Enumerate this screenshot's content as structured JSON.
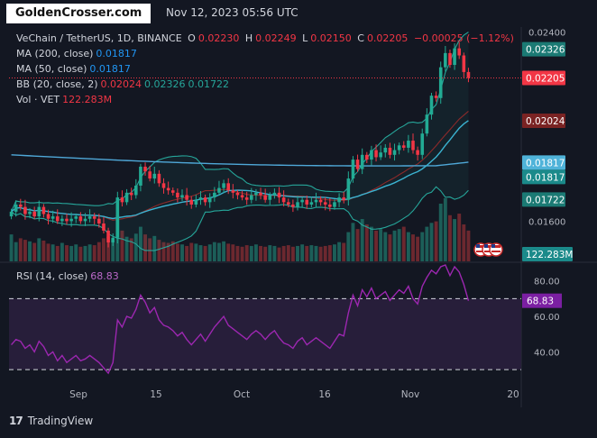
{
  "header": {
    "brand": "GoldenCrosser.com",
    "timestamp": "Nov 12, 2023 05:56 UTC"
  },
  "legend": {
    "symbol": "VeChain / TetherUS, 1D, BINANCE",
    "o_label": "O",
    "o_value": "0.02230",
    "h_label": "H",
    "h_value": "0.02249",
    "l_label": "L",
    "l_value": "0.02150",
    "c_label": "C",
    "c_value": "0.02205",
    "change": "−0.00025 (−1.12%)",
    "ma200_label": "MA (200, close)",
    "ma200_value": "0.01817",
    "ma50_label": "MA (50, close)",
    "ma50_value": "0.01817",
    "bb_label": "BB (20, close, 2)",
    "bb_basis": "0.02024",
    "bb_upper": "0.02326",
    "bb_lower": "0.01722",
    "vol_label": "Vol · VET",
    "vol_value": "122.283M",
    "rsi_label": "RSI (14, close)",
    "rsi_value": "68.83"
  },
  "footer": {
    "logo_text": "TradingView",
    "logo_mark": "17"
  },
  "colors": {
    "background": "#131722",
    "up": "#22ab94",
    "down": "#f23645",
    "bb_band": "#26a69a",
    "bb_basis": "#8c2a2a",
    "ma50": "#3bb3d1",
    "ma200": "#4fa8d8",
    "rsi": "#9c27b0",
    "rsi_fill": "#2a1f3d"
  },
  "chart_data": [
    {
      "type": "candlestick",
      "title": "VeChain / TetherUS, 1D, BINANCE",
      "x_ticks": [
        "Sep",
        "15",
        "Oct",
        "16",
        "Nov",
        "20"
      ],
      "y_ticks": [
        "0.02400",
        "0.01600"
      ],
      "y_range": [
        0.0143,
        0.0242
      ],
      "price_badges": [
        {
          "label": "ma200",
          "value": 0.01817,
          "text": "0.01817",
          "color": "#4fb3d9"
        },
        {
          "label": "ma50",
          "value": 0.01817,
          "text": "0.01817",
          "color": "#1b8a8a"
        },
        {
          "label": "bb_upper",
          "value": 0.02326,
          "text": "0.02326",
          "color": "#1b7a74"
        },
        {
          "label": "bb_lower",
          "value": 0.01722,
          "text": "0.01722",
          "color": "#1b7a74"
        },
        {
          "label": "bb_basis",
          "value": 0.02024,
          "text": "0.02024",
          "color": "#7a2323"
        },
        {
          "label": "last",
          "value": 0.02205,
          "text": "0.02205",
          "color": "#f23645"
        },
        {
          "label": "volume",
          "value": 122.283,
          "text": "122.283M",
          "color": "#1b8a8a"
        }
      ],
      "first_date": "2023-08-22",
      "close": [
        0.0164,
        0.0167,
        0.0166,
        0.0163,
        0.0164,
        0.0162,
        0.0166,
        0.0163,
        0.0161,
        0.0162,
        0.016,
        0.0161,
        0.016,
        0.0161,
        0.0162,
        0.016,
        0.0161,
        0.0162,
        0.0161,
        0.0159,
        0.0156,
        0.0151,
        0.0153,
        0.017,
        0.0168,
        0.0172,
        0.0171,
        0.0175,
        0.0183,
        0.0181,
        0.0178,
        0.018,
        0.0176,
        0.0174,
        0.0173,
        0.0172,
        0.017,
        0.0171,
        0.0169,
        0.0167,
        0.0169,
        0.017,
        0.0168,
        0.017,
        0.0172,
        0.0174,
        0.0176,
        0.0173,
        0.0172,
        0.0171,
        0.017,
        0.0169,
        0.0171,
        0.0172,
        0.0171,
        0.0169,
        0.0171,
        0.0172,
        0.017,
        0.0168,
        0.0167,
        0.0166,
        0.0168,
        0.0169,
        0.0167,
        0.0168,
        0.0169,
        0.0168,
        0.0167,
        0.0166,
        0.0168,
        0.017,
        0.0169,
        0.0178,
        0.0186,
        0.0182,
        0.0188,
        0.0186,
        0.019,
        0.0187,
        0.0189,
        0.0191,
        0.0188,
        0.019,
        0.0192,
        0.0191,
        0.0194,
        0.019,
        0.0188,
        0.0197,
        0.0205,
        0.0213,
        0.0212,
        0.0225,
        0.0231,
        0.0226,
        0.0233,
        0.023,
        0.0223,
        0.02205
      ],
      "volume": [
        0.35,
        0.25,
        0.3,
        0.28,
        0.26,
        0.24,
        0.3,
        0.27,
        0.23,
        0.22,
        0.2,
        0.24,
        0.21,
        0.2,
        0.22,
        0.19,
        0.2,
        0.22,
        0.21,
        0.25,
        0.3,
        0.32,
        0.28,
        0.6,
        0.4,
        0.32,
        0.3,
        0.36,
        0.45,
        0.35,
        0.3,
        0.33,
        0.28,
        0.25,
        0.24,
        0.26,
        0.23,
        0.22,
        0.2,
        0.24,
        0.23,
        0.21,
        0.2,
        0.22,
        0.25,
        0.24,
        0.26,
        0.23,
        0.22,
        0.2,
        0.19,
        0.21,
        0.2,
        0.22,
        0.2,
        0.19,
        0.21,
        0.2,
        0.18,
        0.2,
        0.21,
        0.19,
        0.2,
        0.22,
        0.2,
        0.21,
        0.2,
        0.19,
        0.2,
        0.21,
        0.22,
        0.25,
        0.24,
        0.38,
        0.5,
        0.42,
        0.55,
        0.48,
        0.45,
        0.4,
        0.42,
        0.38,
        0.35,
        0.4,
        0.42,
        0.45,
        0.38,
        0.35,
        0.32,
        0.38,
        0.45,
        0.5,
        0.52,
        0.75,
        0.82,
        0.6,
        0.55,
        0.62,
        0.48,
        0.4
      ],
      "rsi_ticks": [
        "80.00",
        "60.00",
        "40.00"
      ],
      "rsi_range": [
        25,
        90
      ],
      "rsi_bands": [
        70,
        30
      ],
      "rsi": [
        44,
        47,
        46,
        42,
        44,
        40,
        46,
        43,
        38,
        40,
        35,
        38,
        34,
        36,
        38,
        35,
        36,
        38,
        36,
        34,
        31,
        28,
        34,
        58,
        54,
        60,
        59,
        64,
        72,
        68,
        62,
        65,
        58,
        55,
        54,
        52,
        49,
        51,
        47,
        44,
        47,
        50,
        46,
        50,
        54,
        57,
        60,
        55,
        53,
        51,
        49,
        47,
        50,
        52,
        50,
        47,
        50,
        52,
        48,
        45,
        44,
        42,
        46,
        48,
        44,
        46,
        48,
        46,
        44,
        42,
        46,
        50,
        49,
        62,
        72,
        66,
        75,
        71,
        76,
        70,
        72,
        74,
        69,
        72,
        75,
        73,
        77,
        70,
        67,
        77,
        82,
        86,
        84,
        88,
        89,
        83,
        88,
        85,
        78,
        68.83
      ]
    }
  ]
}
